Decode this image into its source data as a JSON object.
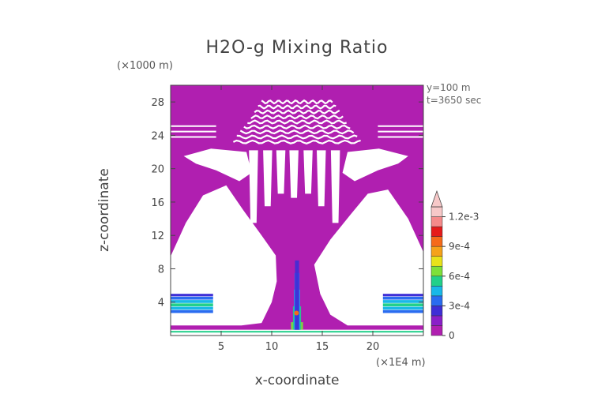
{
  "chart_data": {
    "type": "heatmap",
    "title": "H2O-g Mixing Ratio",
    "xlabel": "x-coordinate",
    "ylabel": "z-coordinate",
    "x_unit": "(×1E4 m)",
    "z_unit": "(×1000 m)",
    "xlim": [
      0,
      25
    ],
    "ylim": [
      0,
      30
    ],
    "x_ticks": [
      "5",
      "10",
      "15",
      "20"
    ],
    "y_ticks": [
      "4",
      "8",
      "12",
      "16",
      "20",
      "24",
      "28"
    ],
    "annotations": [
      "y=100 m",
      "t=3650 sec"
    ],
    "colorbar": {
      "min": 0,
      "max": 0.0013,
      "tick_labels": [
        "1.2e-3",
        "9e-4",
        "6e-4",
        "3e-4",
        "0"
      ],
      "colors": [
        "#b01fb0",
        "#8a1fc8",
        "#3e2ed6",
        "#2a6cf0",
        "#19b8e8",
        "#22d08a",
        "#7ee03a",
        "#e8e21a",
        "#f5a21a",
        "#f56a1a",
        "#e51a1a",
        "#f58a8a",
        "#f7c8c8"
      ]
    },
    "background_value": 0,
    "background_color": "#b01fb0"
  }
}
